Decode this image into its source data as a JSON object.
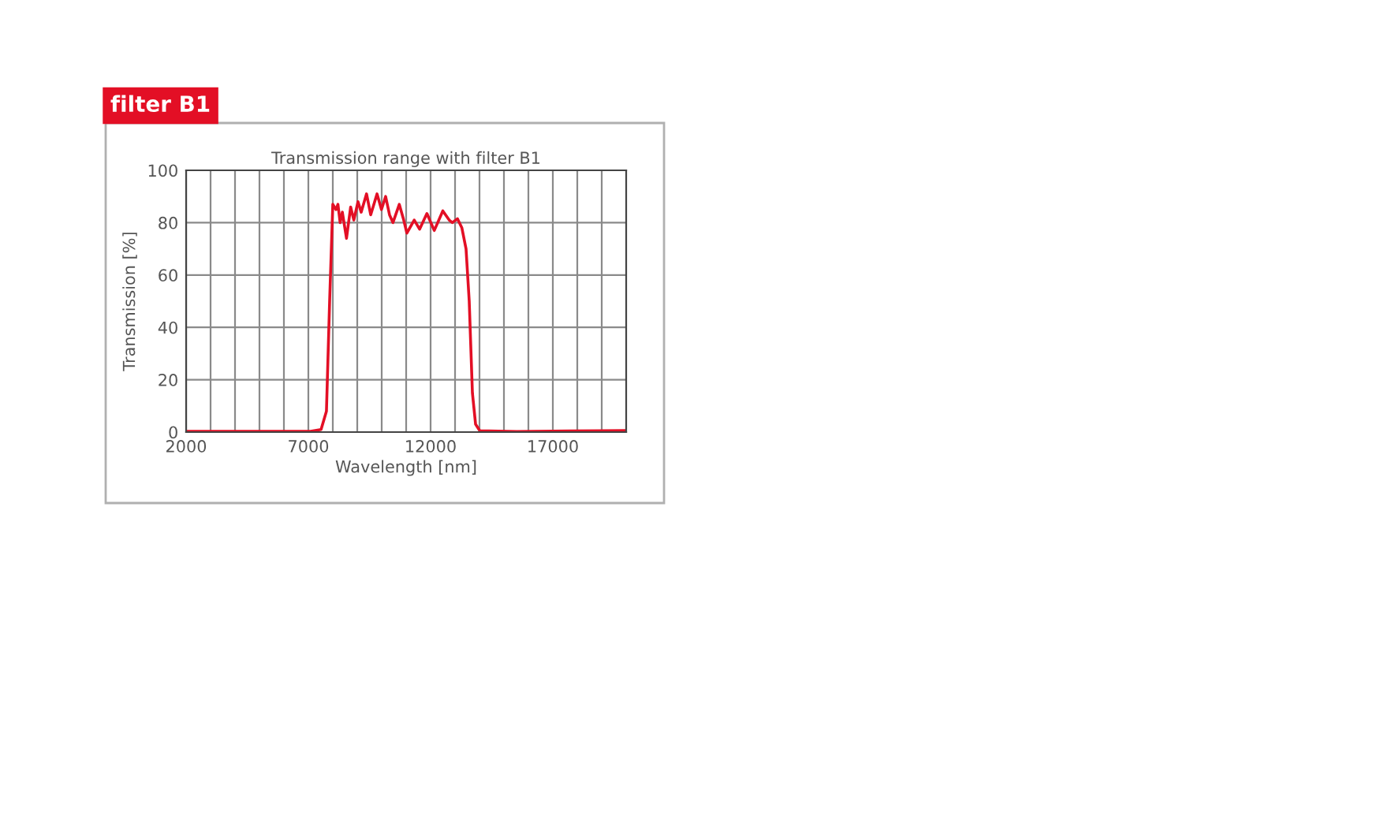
{
  "chart_data": {
    "type": "line",
    "subtitle": "filter B1",
    "title": "Transmission range with filter B1",
    "xlabel": "Wavelength [nm]",
    "ylabel": "Transmission [%]",
    "x": [
      2000,
      7090,
      7520,
      7740,
      7870,
      8000,
      8130,
      8210,
      8300,
      8390,
      8560,
      8730,
      8860,
      9030,
      9160,
      9380,
      9550,
      9810,
      9990,
      10160,
      10320,
      10460,
      10720,
      10900,
      11030,
      11330,
      11550,
      11850,
      12150,
      12500,
      12760,
      12890,
      13100,
      13280,
      13450,
      13580,
      13710,
      13840,
      14010,
      15530,
      17690,
      20000
    ],
    "series": [
      {
        "color": "#e30f25",
        "values": [
          0.3,
          0.3,
          1,
          8,
          50,
          87,
          85,
          87,
          80,
          84,
          74,
          86,
          81,
          88,
          84,
          91,
          83,
          91,
          85,
          90,
          83,
          80,
          87,
          81,
          76,
          81,
          77.5,
          83.5,
          77,
          84.5,
          81,
          80,
          81.5,
          78,
          70,
          50,
          15,
          3,
          0.5,
          0.2,
          0.4,
          0.6
        ]
      }
    ],
    "xlim": [
      2000,
      20000
    ],
    "xticks": [
      2000,
      {
        "value": 3000,
        "label": null
      },
      {
        "value": 4000,
        "label": null
      },
      {
        "value": 5000,
        "label": null
      },
      {
        "value": 6000,
        "label": null
      },
      7000,
      {
        "value": 8000,
        "label": null
      },
      {
        "value": 9000,
        "label": null
      },
      {
        "value": 10000,
        "label": null
      },
      {
        "value": 11000,
        "label": null
      },
      12000,
      {
        "value": 13000,
        "label": null
      },
      {
        "value": 14000,
        "label": null
      },
      {
        "value": 15000,
        "label": null
      },
      {
        "value": 16000,
        "label": null
      },
      17000,
      {
        "value": 18000,
        "label": null
      },
      {
        "value": 19000,
        "label": null
      }
    ],
    "ylim": [
      0,
      100
    ],
    "yticks": [
      0,
      20,
      40,
      60,
      80,
      100
    ],
    "grid": true,
    "marker": "none",
    "line_style": "solid",
    "legend": false
  }
}
